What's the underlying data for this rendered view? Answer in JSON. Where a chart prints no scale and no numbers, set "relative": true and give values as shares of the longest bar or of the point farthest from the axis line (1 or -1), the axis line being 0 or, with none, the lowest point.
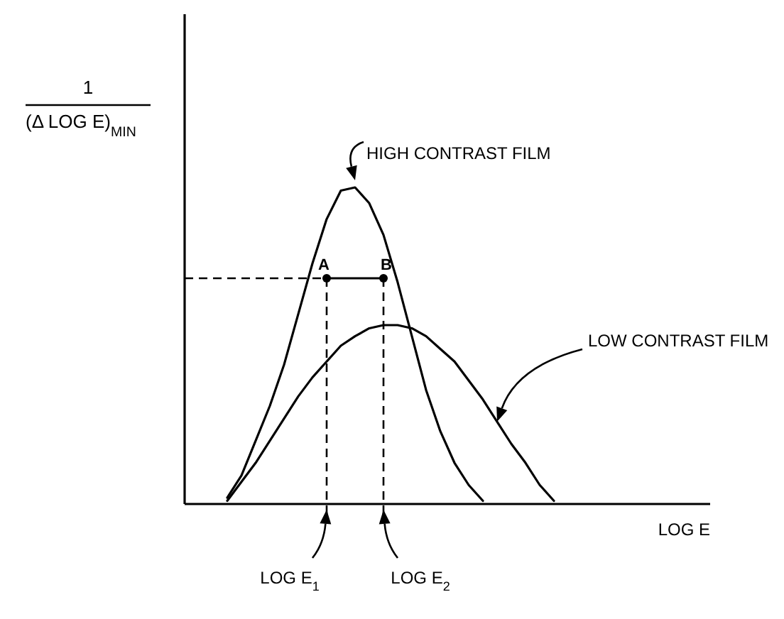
{
  "chart_data": {
    "type": "line",
    "relative": true,
    "xlabel": "LOG E",
    "ylabel": "1\n(Δ LOG E)$_{MIN}$",
    "line_style": "solid",
    "categories": [
      null,
      null,
      null,
      null,
      null,
      null,
      null,
      null,
      null,
      null,
      null,
      null,
      null,
      null,
      null,
      null,
      null,
      null,
      null,
      null,
      null,
      null,
      null,
      null,
      null,
      null,
      null,
      null,
      null,
      null,
      null,
      null,
      null,
      null,
      null,
      null,
      null,
      null
    ],
    "series": [
      {
        "name": "HIGH CONTRAST FILM",
        "color": "#000000",
        "values": [
          null,
          null,
          null,
          0.02,
          0.09,
          0.2,
          0.31,
          0.44,
          0.6,
          0.76,
          0.9,
          0.99,
          1,
          0.95,
          0.85,
          0.7,
          0.53,
          0.36,
          0.23,
          0.13,
          0.06,
          0.01,
          null,
          null,
          null,
          null,
          null,
          null,
          null,
          null,
          null,
          null,
          null,
          null,
          null,
          null,
          null,
          null
        ]
      },
      {
        "name": "LOW CONTRAST FILM",
        "color": "#000000",
        "values": [
          null,
          null,
          null,
          0.01,
          0.07,
          0.13,
          0.2,
          0.27,
          0.34,
          0.4,
          0.45,
          0.5,
          0.53,
          0.555,
          0.565,
          0.565,
          0.555,
          0.53,
          0.49,
          0.45,
          0.39,
          0.33,
          0.26,
          0.19,
          0.13,
          0.06,
          0.01,
          null,
          null,
          null,
          null,
          null,
          null,
          null,
          null,
          null,
          null,
          null
        ]
      },
      {
        "color": "#000000",
        "marker": "circle",
        "values": [
          null,
          null,
          null,
          null,
          null,
          null,
          null,
          null,
          null,
          null,
          0.713,
          null,
          null,
          null,
          0.713,
          null,
          null,
          null,
          null,
          null,
          null,
          null,
          null,
          null,
          null,
          null,
          null,
          null,
          null,
          null,
          null,
          null,
          null,
          null,
          null,
          null,
          null,
          null
        ]
      }
    ],
    "ref_lines": [
      {
        "axis": "y",
        "value": 0.713,
        "line_style": "dashed",
        "color": "#000000"
      }
    ],
    "annotations": [
      "A",
      "B",
      "LOG E$_{1}$",
      "LOG E$_{2}$"
    ]
  }
}
